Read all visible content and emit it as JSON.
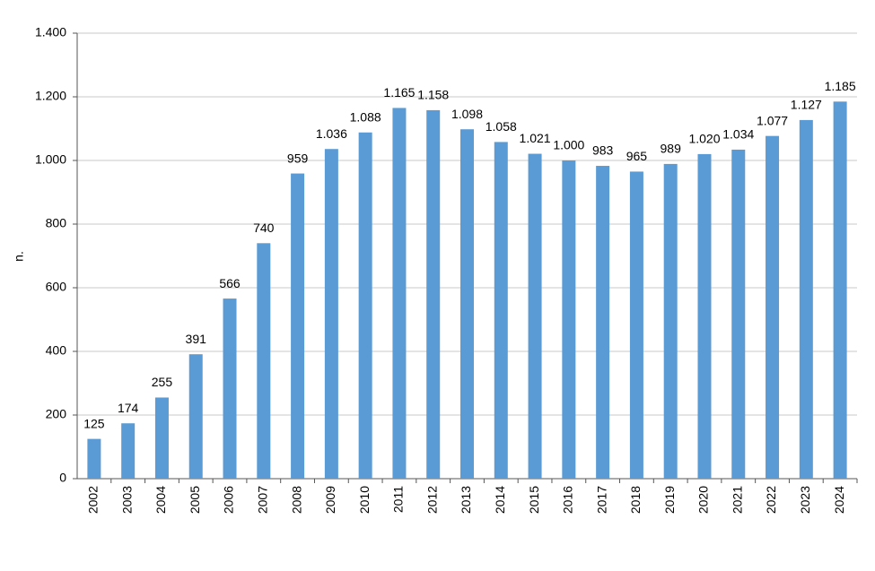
{
  "chart_data": {
    "type": "bar",
    "y_label": "n.",
    "categories": [
      "2002",
      "2003",
      "2004",
      "2005",
      "2006",
      "2007",
      "2008",
      "2009",
      "2010",
      "2011",
      "2012",
      "2013",
      "2014",
      "2015",
      "2016",
      "2017",
      "2018",
      "2019",
      "2020",
      "2021",
      "2022",
      "2023",
      "2024"
    ],
    "values": [
      125,
      174,
      255,
      391,
      566,
      740,
      959,
      1036,
      1088,
      1165,
      1158,
      1098,
      1058,
      1021,
      1000,
      983,
      965,
      989,
      1020,
      1034,
      1077,
      1127,
      1185
    ],
    "value_labels": [
      "125",
      "174",
      "255",
      "391",
      "566",
      "740",
      "959",
      "1.036",
      "1.088",
      "1.165",
      "1.158",
      "1.098",
      "1.058",
      "1.021",
      "1.000",
      "983",
      "965",
      "989",
      "1.020",
      "1.034",
      "1.077",
      "1.127",
      "1.185"
    ],
    "color": "#5b9bd5",
    "ylim": [
      0,
      1400
    ],
    "yticks": [
      0,
      200,
      400,
      600,
      800,
      {
        "value": 1000,
        "label": "1.000"
      },
      {
        "value": 1200,
        "label": "1.200"
      },
      {
        "value": 1400,
        "label": "1.400"
      }
    ],
    "grid": true
  }
}
